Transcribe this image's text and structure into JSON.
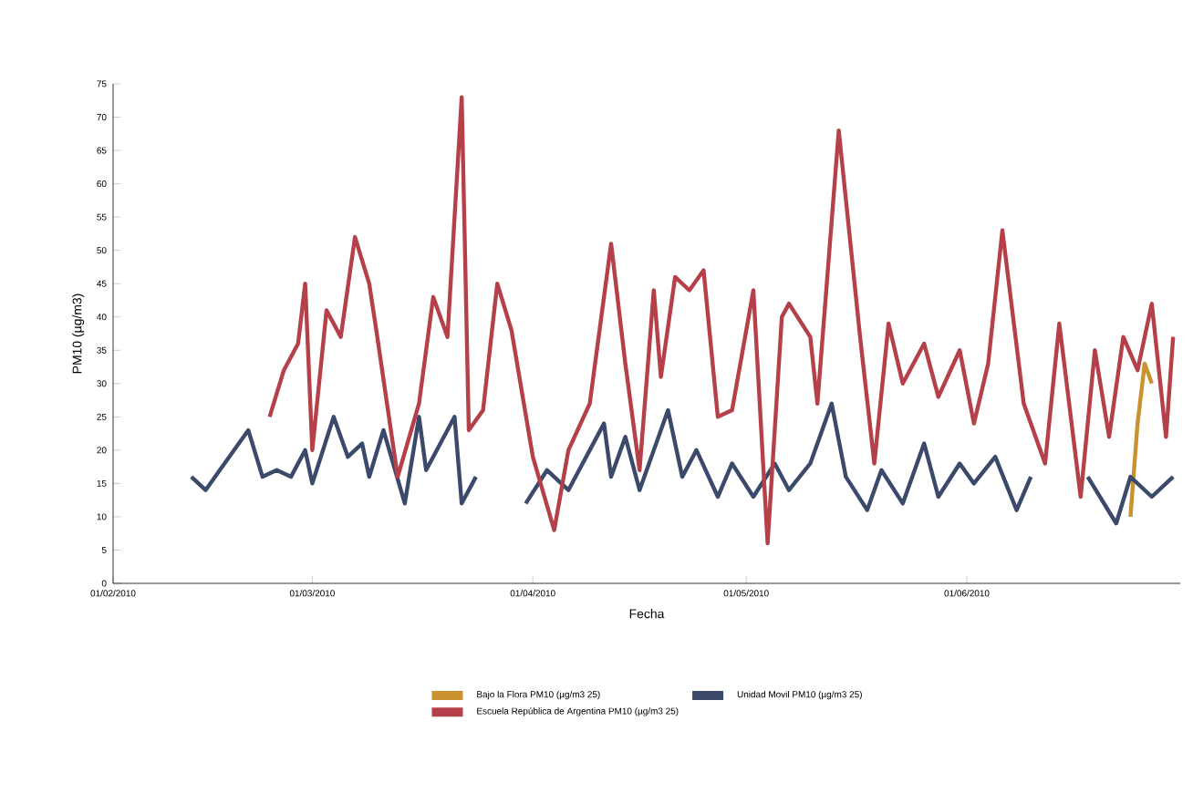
{
  "chart_data": {
    "type": "line",
    "xlabel": "Fecha",
    "ylabel": "PM10 (µg/m3)",
    "xlim": [
      "2010-02-01",
      "2010-07-01"
    ],
    "xticks": [
      {
        "value": "2010-02-01",
        "label": "01/02/2010"
      },
      {
        "value": "2010-03-01",
        "label": "01/03/2010"
      },
      {
        "value": "2010-04-01",
        "label": "01/04/2010"
      },
      {
        "value": "2010-05-01",
        "label": "01/05/2010"
      },
      {
        "value": "2010-06-01",
        "label": "01/06/2010"
      }
    ],
    "ylim": [
      0,
      75
    ],
    "yticks": [
      0,
      5,
      10,
      15,
      20,
      25,
      30,
      35,
      40,
      45,
      50,
      55,
      60,
      65,
      70,
      75
    ],
    "grid": false,
    "legend": "bottom",
    "marker": "none",
    "line_style": "solid",
    "series": [
      {
        "name": "Bajo la Flora PM10 (µg/m3 25)",
        "color": "#c8922e",
        "x": [
          "2010-06-24",
          "2010-06-25",
          "2010-06-26",
          "2010-06-27"
        ],
        "values": [
          10,
          24,
          33,
          30
        ]
      },
      {
        "name": "Unidad Movil PM10 (µg/m3 25)",
        "color": "#3b4a6b",
        "x": [
          "2010-02-12",
          "2010-02-14",
          "2010-02-16",
          "2010-02-20",
          "2010-02-22",
          "2010-02-24",
          "2010-02-26",
          "2010-02-28",
          "2010-03-01",
          "2010-03-04",
          "2010-03-06",
          "2010-03-08",
          "2010-03-09",
          "2010-03-11",
          "2010-03-14",
          "2010-03-16",
          "2010-03-17",
          "2010-03-19",
          "2010-03-21",
          "2010-03-22",
          "2010-03-24",
          "2010-03-28",
          "2010-03-31",
          "2010-04-03",
          "2010-04-06",
          "2010-04-09",
          "2010-04-11",
          "2010-04-12",
          "2010-04-14",
          "2010-04-16",
          "2010-04-18",
          "2010-04-20",
          "2010-04-22",
          "2010-04-24",
          "2010-04-27",
          "2010-04-29",
          "2010-05-02",
          "2010-05-05",
          "2010-05-07",
          "2010-05-10",
          "2010-05-13",
          "2010-05-15",
          "2010-05-18",
          "2010-05-20",
          "2010-05-23",
          "2010-05-26",
          "2010-05-28",
          "2010-05-31",
          "2010-06-02",
          "2010-06-05",
          "2010-06-08",
          "2010-06-10",
          "2010-06-14",
          "2010-06-18",
          "2010-06-22",
          "2010-06-24",
          "2010-06-27",
          "2010-06-30"
        ],
        "values": [
          16,
          14,
          17,
          23,
          16,
          17,
          16,
          20,
          15,
          25,
          19,
          21,
          16,
          23,
          12,
          25,
          17,
          21,
          25,
          12,
          16,
          null,
          12,
          17,
          14,
          20,
          24,
          16,
          22,
          14,
          20,
          26,
          16,
          20,
          13,
          18,
          13,
          18,
          14,
          18,
          27,
          16,
          11,
          17,
          12,
          21,
          13,
          18,
          15,
          19,
          11,
          16,
          null,
          16,
          9,
          16,
          13,
          16
        ]
      },
      {
        "name": "Escuela República de Argentina PM10 (µg/m3 25)",
        "color": "#b5404a",
        "x": [
          "2010-02-23",
          "2010-02-25",
          "2010-02-27",
          "2010-02-28",
          "2010-03-01",
          "2010-03-03",
          "2010-03-05",
          "2010-03-07",
          "2010-03-09",
          "2010-03-10",
          "2010-03-13",
          "2010-03-16",
          "2010-03-18",
          "2010-03-20",
          "2010-03-22",
          "2010-03-23",
          "2010-03-25",
          "2010-03-27",
          "2010-03-29",
          "2010-04-01",
          "2010-04-04",
          "2010-04-06",
          "2010-04-09",
          "2010-04-12",
          "2010-04-14",
          "2010-04-16",
          "2010-04-18",
          "2010-04-19",
          "2010-04-21",
          "2010-04-23",
          "2010-04-25",
          "2010-04-27",
          "2010-04-29",
          "2010-05-02",
          "2010-05-04",
          "2010-05-06",
          "2010-05-07",
          "2010-05-10",
          "2010-05-11",
          "2010-05-14",
          "2010-05-17",
          "2010-05-19",
          "2010-05-21",
          "2010-05-23",
          "2010-05-26",
          "2010-05-28",
          "2010-05-31",
          "2010-06-02",
          "2010-06-04",
          "2010-06-06",
          "2010-06-09",
          "2010-06-12",
          "2010-06-14",
          "2010-06-17",
          "2010-06-19",
          "2010-06-21",
          "2010-06-23",
          "2010-06-25",
          "2010-06-27",
          "2010-06-29",
          "2010-06-30"
        ],
        "values": [
          25,
          32,
          36,
          45,
          20,
          41,
          37,
          52,
          45,
          38,
          16,
          27,
          43,
          37,
          73,
          23,
          26,
          45,
          38,
          19,
          8,
          20,
          27,
          51,
          33,
          17,
          44,
          31,
          46,
          44,
          47,
          25,
          26,
          44,
          6,
          40,
          42,
          37,
          27,
          68,
          37,
          18,
          39,
          30,
          36,
          28,
          35,
          24,
          33,
          53,
          27,
          18,
          39,
          13,
          35,
          22,
          37,
          32,
          42,
          22,
          37
        ]
      }
    ]
  }
}
